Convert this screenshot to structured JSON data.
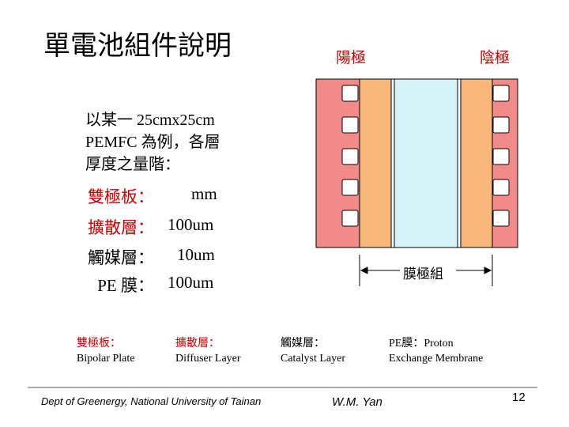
{
  "header": {
    "title": "單電池組件說明"
  },
  "diagram": {
    "anode": "陽極",
    "cathode": "陰極",
    "mea": "膜極組"
  },
  "intro": [
    "以某一 25cmx25cm",
    "PEMFC 為例，各層",
    "厚度之量階："
  ],
  "specs": [
    {
      "label": "雙極板：",
      "value": "mm"
    },
    {
      "label": "擴散層：",
      "value": "100um"
    },
    {
      "label": "觸媒層：",
      "value": "10um"
    },
    {
      "label": "PE 膜：",
      "value": "100um"
    }
  ],
  "legend": [
    {
      "zh": "雙極板：",
      "en": "Bipolar Plate"
    },
    {
      "zh": "擴散層：",
      "en": "Diffuser Layer"
    },
    {
      "zh": "觸媒層：",
      "en": "Catalyst Layer"
    },
    {
      "zh": "PE膜：Proton",
      "en": "Exchange Membrane"
    }
  ],
  "footer": {
    "dept": "Dept  of Greenergy, National University of Tainan",
    "author": "W.M. Yan",
    "page": "12"
  }
}
